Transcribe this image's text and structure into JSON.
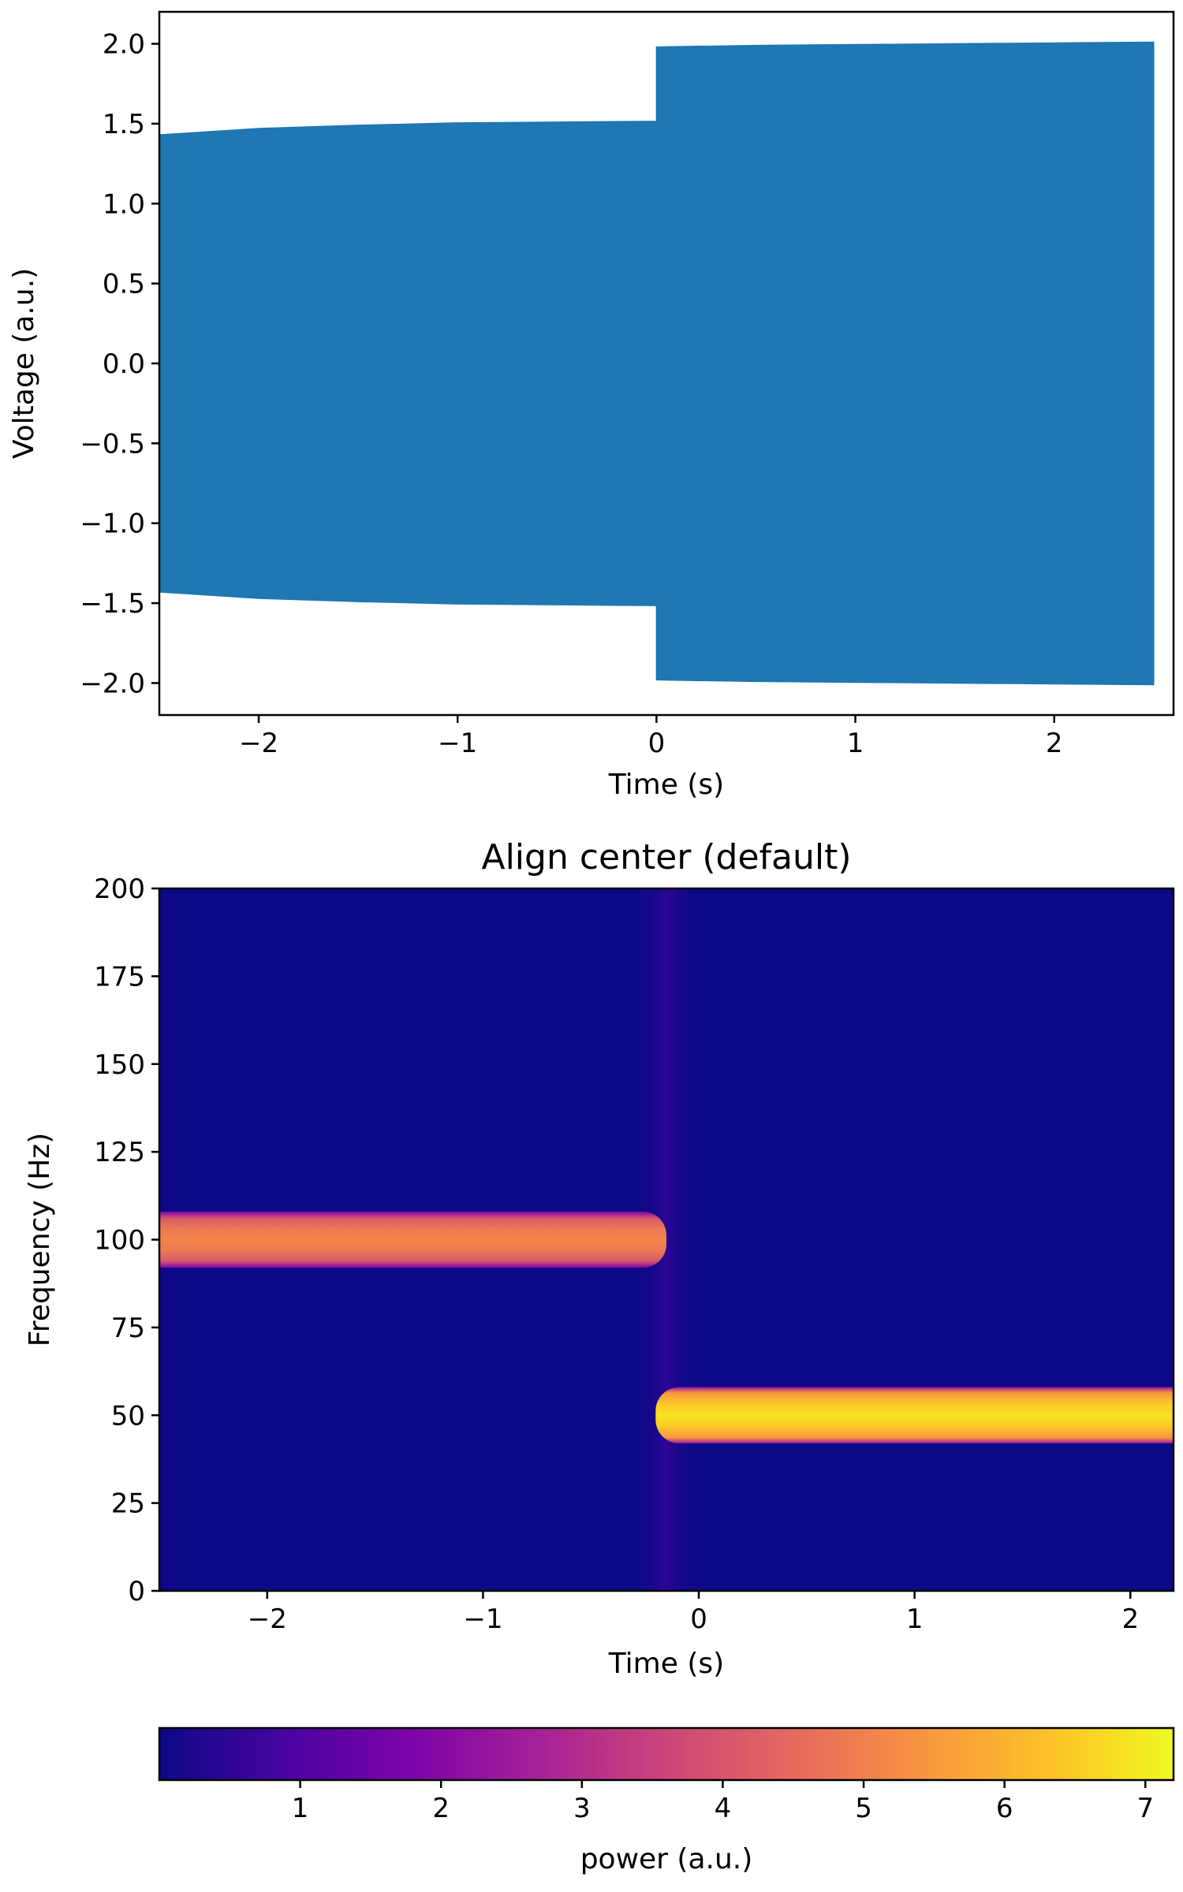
{
  "chart_data": [
    {
      "type": "area",
      "xlabel": "Time (s)",
      "ylabel": "Voltage (a.u.)",
      "xlim": [
        -2.5,
        2.6
      ],
      "ylim": [
        -2.2,
        2.2
      ],
      "xticks": [
        -2,
        -1,
        0,
        1,
        2
      ],
      "xtick_labels": [
        "−2",
        "−1",
        "0",
        "1",
        "2"
      ],
      "yticks": [
        2.0,
        1.5,
        1.0,
        0.5,
        0.0,
        -0.5,
        -1.0,
        -1.5,
        -2.0
      ],
      "ytick_labels": [
        "2.0",
        "1.5",
        "1.0",
        "0.5",
        "0.0",
        "−0.5",
        "−1.0",
        "−1.5",
        "−2.0"
      ],
      "color": "#1f77b4",
      "envelope_time": [
        -2.5,
        -2.0,
        -1.5,
        -1.0,
        -0.5,
        0.0,
        0.0,
        0.5,
        1.0,
        1.5,
        2.0,
        2.5
      ],
      "envelope_amplitude": [
        1.43,
        1.47,
        1.49,
        1.505,
        1.51,
        1.515,
        1.98,
        1.99,
        1.995,
        2.0,
        2.005,
        2.01
      ],
      "grid": false
    },
    {
      "type": "heatmap",
      "title": "Align center (default)",
      "xlabel": "Time (s)",
      "ylabel": "Frequency (Hz)",
      "xlim": [
        -2.5,
        2.2
      ],
      "ylim": [
        0,
        200
      ],
      "xticks": [
        -2,
        -1,
        0,
        1,
        2
      ],
      "xtick_labels": [
        "−2",
        "−1",
        "0",
        "1",
        "2"
      ],
      "yticks": [
        200,
        175,
        150,
        125,
        100,
        75,
        50,
        25,
        0
      ],
      "ytick_labels": [
        "200",
        "175",
        "150",
        "125",
        "100",
        "75",
        "50",
        "25",
        "0"
      ],
      "colormap": "plasma",
      "background_color": "#0d0887",
      "bands": [
        {
          "t_start": -2.5,
          "t_end": -0.15,
          "freq_center": 100,
          "freq_halfwidth": 8,
          "power": 5.2
        },
        {
          "t_start": -0.2,
          "t_end": 2.2,
          "freq_center": 50,
          "freq_halfwidth": 8,
          "power": 6.6
        }
      ],
      "transition_smear": {
        "t_start": -0.3,
        "t_end": 0.0
      },
      "grid": false
    }
  ],
  "colorbar": {
    "label": "power (a.u.)",
    "range": [
      0,
      7.2
    ],
    "ticks": [
      1,
      2,
      3,
      4,
      5,
      6,
      7
    ],
    "tick_labels": [
      "1",
      "2",
      "3",
      "4",
      "5",
      "6",
      "7"
    ],
    "colormap": "plasma"
  }
}
